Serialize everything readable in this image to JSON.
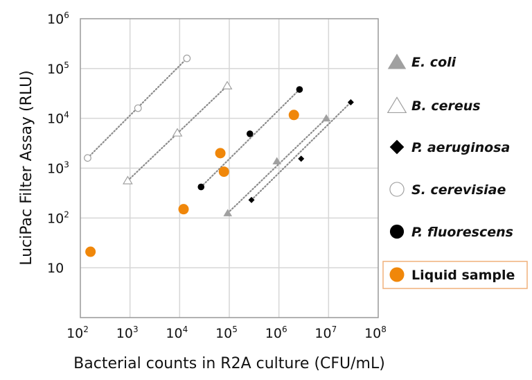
{
  "chart_data": {
    "type": "scatter",
    "title": "",
    "xlabel": "Bacterial counts in R2A culture (CFU/mL)",
    "ylabel": "LuciPac Filter Assay (RLU)",
    "xscale": "log",
    "yscale": "log",
    "xlim": [
      100,
      100000000
    ],
    "ylim": [
      1,
      1000000
    ],
    "grid": true,
    "legend_position": "right",
    "x_ticks": [
      {
        "base": "10",
        "exp": "2"
      },
      {
        "base": "10",
        "exp": "3"
      },
      {
        "base": "10",
        "exp": "4"
      },
      {
        "base": "10",
        "exp": "5"
      },
      {
        "base": "10",
        "exp": "6"
      },
      {
        "base": "10",
        "exp": "7"
      },
      {
        "base": "10",
        "exp": "8"
      }
    ],
    "y_ticks": [
      {
        "value": 10,
        "base": "10",
        "exp": ""
      },
      {
        "value": 100,
        "base": "10",
        "exp": "2"
      },
      {
        "value": 1000,
        "base": "10",
        "exp": "3"
      },
      {
        "value": 10000,
        "base": "10",
        "exp": "4"
      },
      {
        "value": 100000,
        "base": "10",
        "exp": "5"
      },
      {
        "value": 1000000,
        "base": "10",
        "exp": "6"
      }
    ],
    "series": [
      {
        "name": "E. coli",
        "marker": "triangle-filled",
        "color": "#a0a0a0",
        "trendline": true,
        "italic": true,
        "points": [
          [
            93000,
            125
          ],
          [
            910000,
            1380
          ],
          [
            9000000,
            10000
          ]
        ]
      },
      {
        "name": "B. cereus",
        "marker": "triangle-open",
        "color": "#a0a0a0",
        "trendline": true,
        "italic": true,
        "points": [
          [
            900,
            560
          ],
          [
            9000,
            5100
          ],
          [
            91000,
            45000
          ]
        ]
      },
      {
        "name": "P. aeruginosa",
        "marker": "diamond",
        "color": "#000000",
        "trendline": true,
        "italic": true,
        "points": [
          [
            280000,
            230
          ],
          [
            2800000,
            1550
          ],
          [
            28000000,
            21000
          ]
        ]
      },
      {
        "name": "S. cerevisiae",
        "marker": "circle-open",
        "color": "#a0a0a0",
        "trendline": true,
        "italic": true,
        "points": [
          [
            140,
            1600
          ],
          [
            1450,
            16000
          ],
          [
            14000,
            160000
          ]
        ]
      },
      {
        "name": "P. fluorescens",
        "marker": "circle-filled",
        "color": "#000000",
        "trendline": true,
        "italic": true,
        "points": [
          [
            27000,
            420
          ],
          [
            260000,
            4900
          ],
          [
            2600000,
            38000
          ]
        ]
      },
      {
        "name": "Liquid sample",
        "marker": "circle-large",
        "color": "#f0870a",
        "trendline": false,
        "italic": false,
        "boxed": true,
        "points": [
          [
            160,
            21
          ],
          [
            12000,
            150
          ],
          [
            66000,
            2000
          ],
          [
            78000,
            850
          ],
          [
            2000000,
            11700
          ]
        ]
      }
    ]
  }
}
